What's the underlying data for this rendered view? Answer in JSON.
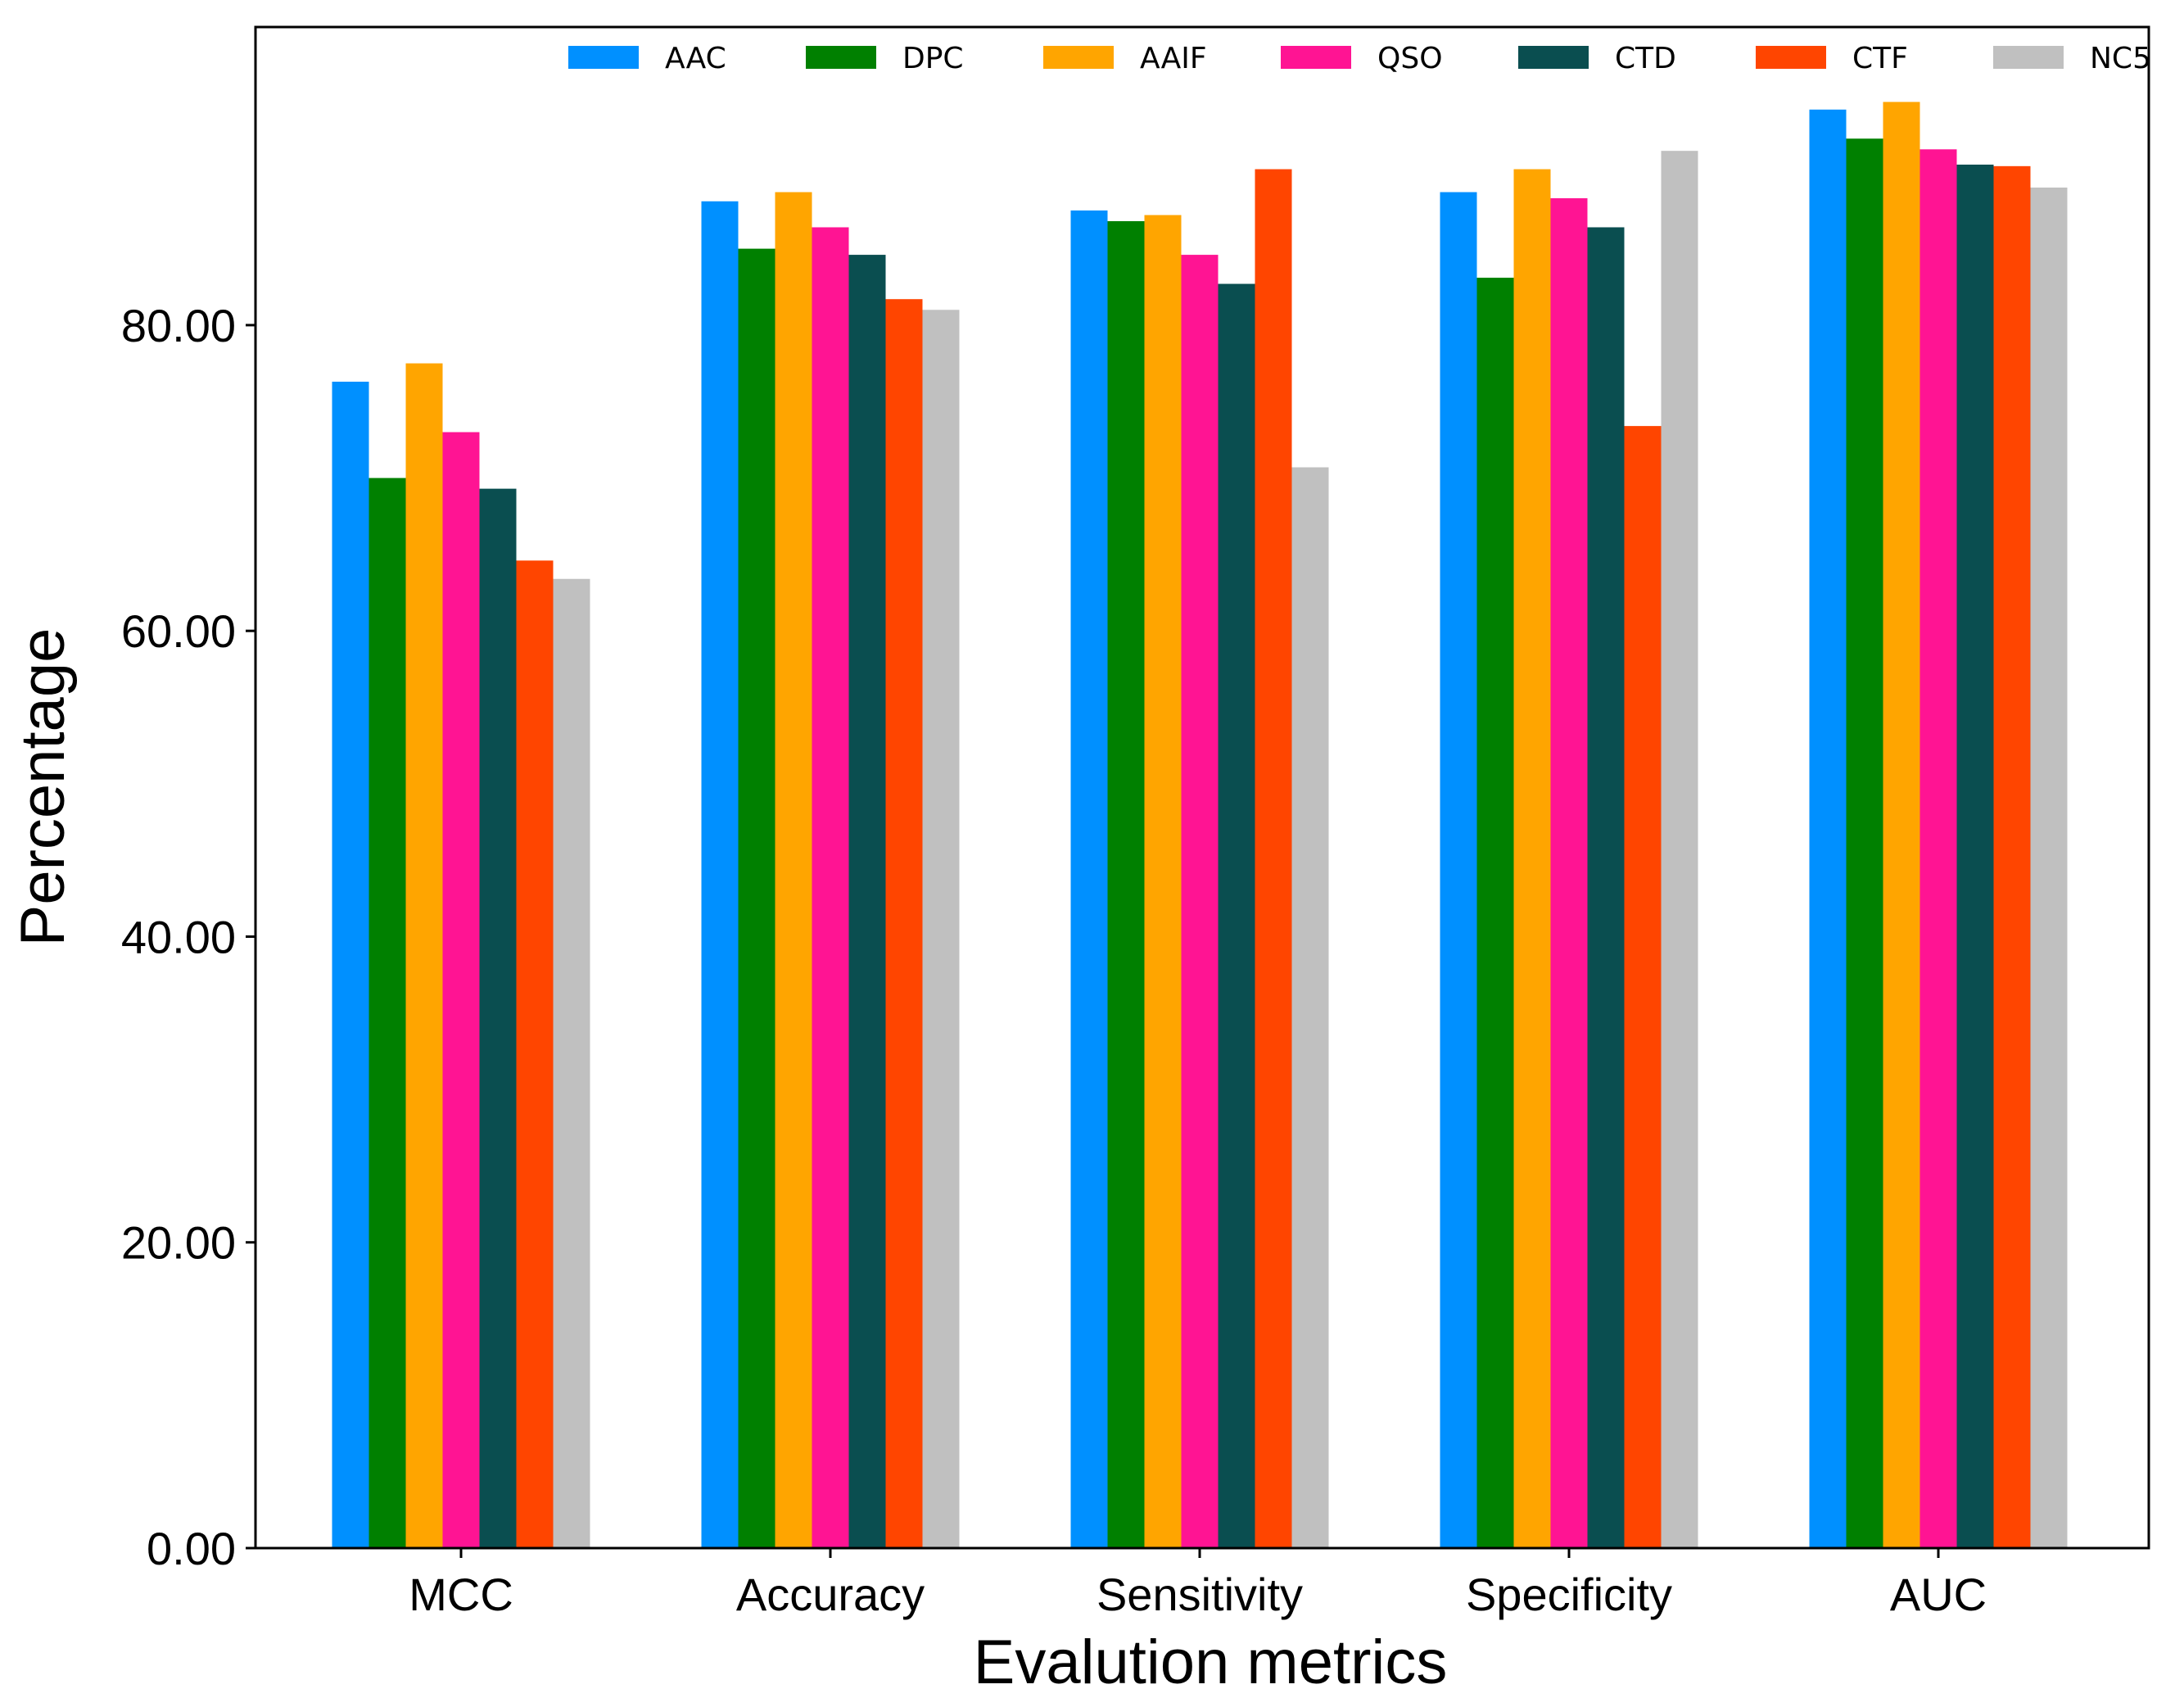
{
  "chart_data": {
    "type": "bar",
    "xlabel": "Evalution metrics",
    "ylabel": "Percentage",
    "ylim": [
      0,
      99.5
    ],
    "yticks": [
      "0.00",
      "20.00",
      "40.00",
      "60.00",
      "80.00"
    ],
    "ytick_values": [
      0,
      20,
      40,
      60,
      80
    ],
    "categories": [
      "MCC",
      "Accuracy",
      "Sensitivity",
      "Specificity",
      "AUC"
    ],
    "legend_position": "top",
    "grid": false,
    "series": [
      {
        "name": "AAC",
        "color": "#0090FF",
        "values": [
          76.3,
          88.1,
          87.5,
          88.7,
          94.1
        ]
      },
      {
        "name": "DPC",
        "color": "#008000",
        "values": [
          70.0,
          85.0,
          86.8,
          83.1,
          92.2
        ]
      },
      {
        "name": "AAIF",
        "color": "#FFA500",
        "values": [
          77.5,
          88.7,
          87.2,
          90.2,
          94.6
        ]
      },
      {
        "name": "QSO",
        "color": "#FF1493",
        "values": [
          73.0,
          86.4,
          84.6,
          88.3,
          91.5
        ]
      },
      {
        "name": "CTD",
        "color": "#0A4E50",
        "values": [
          69.3,
          84.6,
          82.7,
          86.4,
          90.5
        ]
      },
      {
        "name": "CTF",
        "color": "#FF4500",
        "values": [
          64.6,
          81.7,
          90.2,
          73.4,
          90.4
        ]
      },
      {
        "name": "NC5",
        "color": "#C0C0C0",
        "values": [
          63.4,
          81.0,
          70.7,
          91.4,
          89.0
        ]
      }
    ]
  }
}
